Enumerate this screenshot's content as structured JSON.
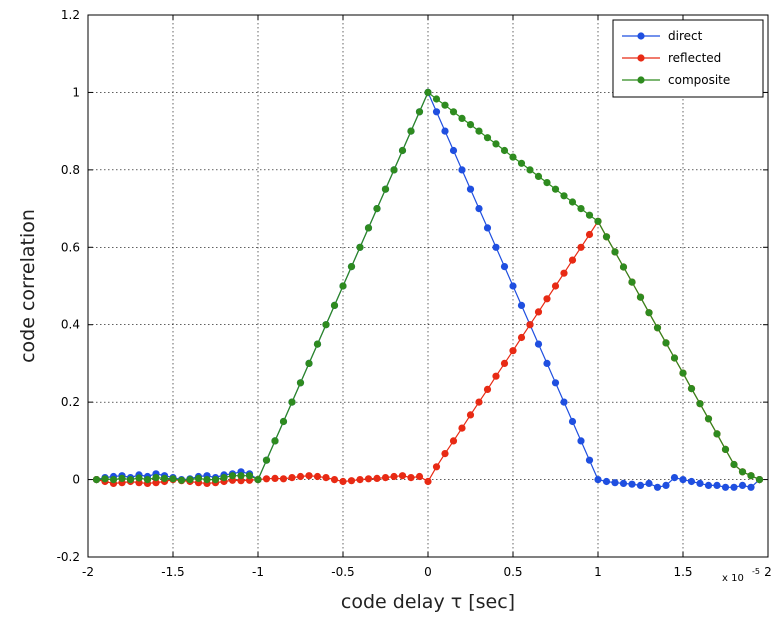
{
  "chart_data": {
    "type": "line",
    "xlabel": "code delay τ [sec]",
    "ylabel": "code correlation",
    "x_multiplier": "x 10",
    "x_multiplier_exp": "-5",
    "xlim": [
      -2,
      2
    ],
    "ylim": [
      -0.2,
      1.2
    ],
    "xticks": [
      "-2",
      "-1.5",
      "-1",
      "-0.5",
      "0",
      "0.5",
      "1",
      "1.5",
      "2"
    ],
    "yticks": [
      "-0.2",
      "0",
      "0.2",
      "0.4",
      "0.6",
      "0.8",
      "1",
      "1.2"
    ],
    "grid": true,
    "legend_position": "top-right",
    "series": [
      {
        "name": "direct",
        "color": "#1f4fe0",
        "x": [
          -1.95,
          -1.9,
          -1.85,
          -1.8,
          -1.75,
          -1.7,
          -1.65,
          -1.6,
          -1.55,
          -1.5,
          -1.45,
          -1.4,
          -1.35,
          -1.3,
          -1.25,
          -1.2,
          -1.15,
          -1.1,
          -1.05,
          -1.0,
          -0.95,
          -0.9,
          -0.85,
          -0.8,
          -0.75,
          -0.7,
          -0.65,
          -0.6,
          -0.55,
          -0.5,
          -0.45,
          -0.4,
          -0.35,
          -0.3,
          -0.25,
          -0.2,
          -0.15,
          -0.1,
          -0.05,
          0.0,
          0.05,
          0.1,
          0.15,
          0.2,
          0.25,
          0.3,
          0.35,
          0.4,
          0.45,
          0.5,
          0.55,
          0.6,
          0.65,
          0.7,
          0.75,
          0.8,
          0.85,
          0.9,
          0.95,
          1.0,
          1.05,
          1.1,
          1.15,
          1.2,
          1.25,
          1.3,
          1.35,
          1.4,
          1.45,
          1.5,
          1.55,
          1.6,
          1.65,
          1.7,
          1.75,
          1.8,
          1.85,
          1.9,
          1.95
        ],
        "y": [
          0.0,
          0.005,
          0.008,
          0.01,
          0.005,
          0.012,
          0.008,
          0.015,
          0.01,
          0.005,
          0.0,
          0.002,
          0.008,
          0.01,
          0.005,
          0.012,
          0.015,
          0.02,
          0.015,
          0.0,
          0.05,
          0.1,
          0.15,
          0.2,
          0.25,
          0.3,
          0.35,
          0.4,
          0.45,
          0.5,
          0.55,
          0.6,
          0.65,
          0.7,
          0.75,
          0.8,
          0.85,
          0.9,
          0.95,
          1.0,
          0.95,
          0.9,
          0.85,
          0.8,
          0.75,
          0.7,
          0.65,
          0.6,
          0.55,
          0.5,
          0.45,
          0.4,
          0.35,
          0.3,
          0.25,
          0.2,
          0.15,
          0.1,
          0.05,
          0.0,
          -0.005,
          -0.008,
          -0.01,
          -0.012,
          -0.015,
          -0.01,
          -0.02,
          -0.015,
          0.005,
          0.0,
          -0.005,
          -0.01,
          -0.015,
          -0.015,
          -0.02,
          -0.02,
          -0.015,
          -0.02,
          0.0
        ]
      },
      {
        "name": "reflected",
        "color": "#e82a14",
        "x": [
          -1.95,
          -1.9,
          -1.85,
          -1.8,
          -1.75,
          -1.7,
          -1.65,
          -1.6,
          -1.55,
          -1.5,
          -1.45,
          -1.4,
          -1.35,
          -1.3,
          -1.25,
          -1.2,
          -1.15,
          -1.1,
          -1.05,
          -1.0,
          -0.95,
          -0.9,
          -0.85,
          -0.8,
          -0.75,
          -0.7,
          -0.65,
          -0.6,
          -0.55,
          -0.5,
          -0.45,
          -0.4,
          -0.35,
          -0.3,
          -0.25,
          -0.2,
          -0.15,
          -0.1,
          -0.05,
          0.0,
          0.05,
          0.1,
          0.15,
          0.2,
          0.25,
          0.3,
          0.35,
          0.4,
          0.45,
          0.5,
          0.55,
          0.6,
          0.65,
          0.7,
          0.75,
          0.8,
          0.85,
          0.9,
          0.95,
          1.0,
          1.05,
          1.1,
          1.15,
          1.2,
          1.25,
          1.3,
          1.35,
          1.4,
          1.45,
          1.5,
          1.55,
          1.6,
          1.65,
          1.7,
          1.75,
          1.8,
          1.85,
          1.9,
          1.95
        ],
        "y": [
          0.0,
          -0.005,
          -0.01,
          -0.008,
          -0.005,
          -0.008,
          -0.01,
          -0.008,
          -0.005,
          0.0,
          -0.003,
          -0.005,
          -0.008,
          -0.01,
          -0.008,
          -0.005,
          -0.002,
          -0.003,
          -0.002,
          0.0,
          0.002,
          0.003,
          0.002,
          0.005,
          0.008,
          0.01,
          0.008,
          0.005,
          0.0,
          -0.005,
          -0.003,
          0.0,
          0.002,
          0.003,
          0.005,
          0.008,
          0.01,
          0.005,
          0.008,
          -0.005,
          0.033,
          0.067,
          0.1,
          0.133,
          0.167,
          0.2,
          0.233,
          0.267,
          0.3,
          0.333,
          0.367,
          0.4,
          0.433,
          0.467,
          0.5,
          0.533,
          0.567,
          0.6,
          0.633,
          0.667,
          0.627,
          0.588,
          0.549,
          0.51,
          0.471,
          0.431,
          0.392,
          0.353,
          0.314,
          0.275,
          0.235,
          0.196,
          0.157,
          0.118,
          0.078,
          0.039,
          0.02,
          0.01,
          0.0
        ]
      },
      {
        "name": "composite",
        "color": "#2e8b1f",
        "x": [
          -1.95,
          -1.9,
          -1.85,
          -1.8,
          -1.75,
          -1.7,
          -1.65,
          -1.6,
          -1.55,
          -1.5,
          -1.45,
          -1.4,
          -1.35,
          -1.3,
          -1.25,
          -1.2,
          -1.15,
          -1.1,
          -1.05,
          -1.0,
          -0.95,
          -0.9,
          -0.85,
          -0.8,
          -0.75,
          -0.7,
          -0.65,
          -0.6,
          -0.55,
          -0.5,
          -0.45,
          -0.4,
          -0.35,
          -0.3,
          -0.25,
          -0.2,
          -0.15,
          -0.1,
          -0.05,
          0.0,
          0.05,
          0.1,
          0.15,
          0.2,
          0.25,
          0.3,
          0.35,
          0.4,
          0.45,
          0.5,
          0.55,
          0.6,
          0.65,
          0.7,
          0.75,
          0.8,
          0.85,
          0.9,
          0.95,
          1.0,
          1.05,
          1.1,
          1.15,
          1.2,
          1.25,
          1.3,
          1.35,
          1.4,
          1.45,
          1.5,
          1.55,
          1.6,
          1.65,
          1.7,
          1.75,
          1.8,
          1.85,
          1.9,
          1.95
        ],
        "y": [
          0.0,
          0.002,
          0.0,
          0.003,
          0.0,
          0.004,
          0.0,
          0.005,
          0.003,
          0.002,
          -0.002,
          0.0,
          0.003,
          0.0,
          0.0,
          0.005,
          0.01,
          0.01,
          0.01,
          0.0,
          0.05,
          0.1,
          0.15,
          0.2,
          0.25,
          0.3,
          0.35,
          0.4,
          0.45,
          0.5,
          0.55,
          0.6,
          0.65,
          0.7,
          0.75,
          0.8,
          0.85,
          0.9,
          0.95,
          1.0,
          0.983,
          0.967,
          0.95,
          0.933,
          0.917,
          0.9,
          0.883,
          0.867,
          0.85,
          0.833,
          0.817,
          0.8,
          0.783,
          0.767,
          0.75,
          0.733,
          0.717,
          0.7,
          0.683,
          0.667,
          0.627,
          0.588,
          0.549,
          0.51,
          0.471,
          0.431,
          0.392,
          0.353,
          0.314,
          0.275,
          0.235,
          0.196,
          0.157,
          0.118,
          0.078,
          0.039,
          0.02,
          0.01,
          0.0
        ]
      }
    ]
  }
}
